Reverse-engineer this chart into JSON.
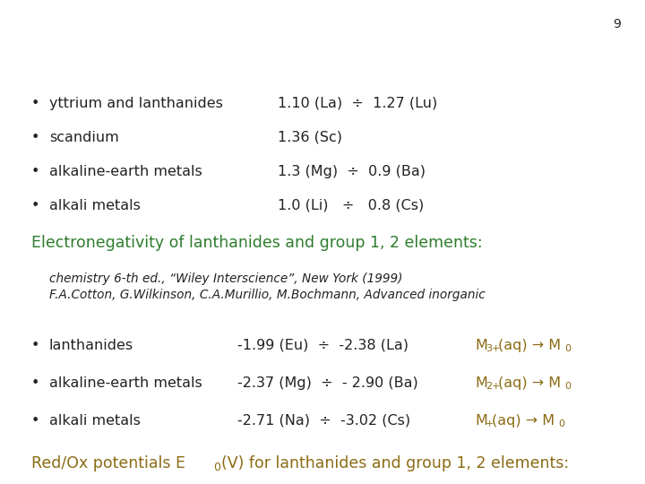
{
  "bg_color": "#ffffff",
  "title1_color": "#8B6B14",
  "title2": "Electronegativity of lanthanides and group 1, 2 elements:",
  "title2_color": "#2e7d2e",
  "section1_rows": [
    {
      "bullet": "•",
      "label": "alkali metals",
      "value": "-2.71 (Na)  ÷  -3.02 (Cs)",
      "sup": "+"
    },
    {
      "bullet": "•",
      "label": "alkaline-earth metals",
      "value": "-2.37 (Mg)  ÷  - 2.90 (Ba)",
      "sup": "2+"
    },
    {
      "bullet": "•",
      "label": "lanthanides",
      "value": "-1.99 (Eu)  ÷  -2.38 (La)",
      "sup": "3+"
    }
  ],
  "reference_line1": "F.A.Cotton, G.Wilkinson, C.A.Murillio, M.Bochmann, Advanced inorganic",
  "reference_line2": "chemistry 6-th ed., “Wiley Interscience”, New York (1999)",
  "section2_rows": [
    {
      "bullet": "•",
      "label": "alkali metals",
      "value": "1.0 (Li)   ÷   0.8 (Cs)"
    },
    {
      "bullet": "•",
      "label": "alkaline-earth metals",
      "value": "1.3 (Mg)  ÷  0.9 (Ba)"
    },
    {
      "bullet": "•",
      "label": "scandium",
      "value": "1.36 (Sc)"
    },
    {
      "bullet": "•",
      "label": "yttrium and lanthanides",
      "value": "1.10 (La)  ÷  1.27 (Lu)"
    }
  ],
  "page_number": "9",
  "text_color": "#222222",
  "formula_color": "#8B6B14",
  "font_size_title": 12.5,
  "font_size_body": 11.5,
  "font_size_ref": 9.8,
  "font_size_page": 10,
  "font_size_sup": 8.0
}
